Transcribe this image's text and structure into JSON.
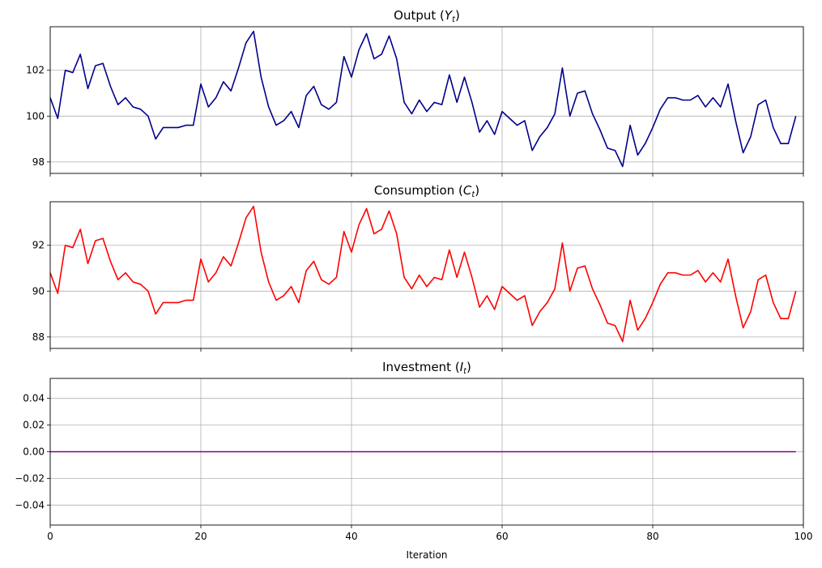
{
  "chart_data": [
    {
      "type": "line",
      "title": "Output (Y_t)",
      "title_base": "Output (",
      "title_var": "Y",
      "title_sub": "t",
      "title_end": ")",
      "color": "#00008b",
      "x_start": 0,
      "xlim": [
        0,
        100
      ],
      "ylim": [
        97.5,
        103.9
      ],
      "yticks": [
        98,
        100,
        102
      ],
      "ytick_labels": [
        "98",
        "100",
        "102"
      ],
      "grid": true,
      "values": [
        100.8,
        99.9,
        102.0,
        101.9,
        102.7,
        101.2,
        102.2,
        102.3,
        101.3,
        100.5,
        100.8,
        100.4,
        100.3,
        100.0,
        99.0,
        99.5,
        99.5,
        99.5,
        99.6,
        99.6,
        101.4,
        100.4,
        100.8,
        101.5,
        101.1,
        102.1,
        103.2,
        103.7,
        101.7,
        100.4,
        99.6,
        99.8,
        100.2,
        99.5,
        100.9,
        101.3,
        100.5,
        100.3,
        100.6,
        102.6,
        101.7,
        102.9,
        103.6,
        102.5,
        102.7,
        103.5,
        102.5,
        100.6,
        100.1,
        100.7,
        100.2,
        100.6,
        100.5,
        101.8,
        100.6,
        101.7,
        100.6,
        99.3,
        99.8,
        99.2,
        100.2,
        99.9,
        99.6,
        99.8,
        98.5,
        99.1,
        99.5,
        100.1,
        102.1,
        100.0,
        101.0,
        101.1,
        100.1,
        99.4,
        98.6,
        98.5,
        97.8,
        99.6,
        98.3,
        98.8,
        99.5,
        100.3,
        100.8,
        100.8,
        100.7,
        100.7,
        100.9,
        100.4,
        100.8,
        100.4,
        101.4,
        99.8,
        98.4,
        99.1,
        100.5,
        100.7,
        99.5,
        98.8,
        98.8,
        100.0
      ]
    },
    {
      "type": "line",
      "title": "Consumption (C_t)",
      "title_base": "Consumption (",
      "title_var": "C",
      "title_sub": "t",
      "title_end": ")",
      "color": "#ff0000",
      "x_start": 0,
      "xlim": [
        0,
        100
      ],
      "ylim": [
        87.5,
        93.9
      ],
      "yticks": [
        88,
        90,
        92
      ],
      "ytick_labels": [
        "88",
        "90",
        "92"
      ],
      "grid": true,
      "values": [
        90.8,
        89.9,
        92.0,
        91.9,
        92.7,
        91.2,
        92.2,
        92.3,
        91.3,
        90.5,
        90.8,
        90.4,
        90.3,
        90.0,
        89.0,
        89.5,
        89.5,
        89.5,
        89.6,
        89.6,
        91.4,
        90.4,
        90.8,
        91.5,
        91.1,
        92.1,
        93.2,
        93.7,
        91.7,
        90.4,
        89.6,
        89.8,
        90.2,
        89.5,
        90.9,
        91.3,
        90.5,
        90.3,
        90.6,
        92.6,
        91.7,
        92.9,
        93.6,
        92.5,
        92.7,
        93.5,
        92.5,
        90.6,
        90.1,
        90.7,
        90.2,
        90.6,
        90.5,
        91.8,
        90.6,
        91.7,
        90.6,
        89.3,
        89.8,
        89.2,
        90.2,
        89.9,
        89.6,
        89.8,
        88.5,
        89.1,
        89.5,
        90.1,
        92.1,
        90.0,
        91.0,
        91.1,
        90.1,
        89.4,
        88.6,
        88.5,
        87.8,
        89.6,
        88.3,
        88.8,
        89.5,
        90.3,
        90.8,
        90.8,
        90.7,
        90.7,
        90.9,
        90.4,
        90.8,
        90.4,
        91.4,
        89.8,
        88.4,
        89.1,
        90.5,
        90.7,
        89.5,
        88.8,
        88.8,
        90.0
      ]
    },
    {
      "type": "line",
      "title": "Investment (I_t)",
      "title_base": "Investment (",
      "title_var": "I",
      "title_sub": "t",
      "title_end": ")",
      "color": "#800080",
      "x_start": 0,
      "xlim": [
        0,
        100
      ],
      "ylim": [
        -0.055,
        0.055
      ],
      "yticks": [
        -0.04,
        -0.02,
        0.0,
        0.02,
        0.04
      ],
      "ytick_labels": [
        "−0.04",
        "−0.02",
        "0.00",
        "0.02",
        "0.04"
      ],
      "grid": true,
      "values": [
        0,
        0,
        0,
        0,
        0,
        0,
        0,
        0,
        0,
        0,
        0,
        0,
        0,
        0,
        0,
        0,
        0,
        0,
        0,
        0,
        0,
        0,
        0,
        0,
        0,
        0,
        0,
        0,
        0,
        0,
        0,
        0,
        0,
        0,
        0,
        0,
        0,
        0,
        0,
        0,
        0,
        0,
        0,
        0,
        0,
        0,
        0,
        0,
        0,
        0,
        0,
        0,
        0,
        0,
        0,
        0,
        0,
        0,
        0,
        0,
        0,
        0,
        0,
        0,
        0,
        0,
        0,
        0,
        0,
        0,
        0,
        0,
        0,
        0,
        0,
        0,
        0,
        0,
        0,
        0,
        0,
        0,
        0,
        0,
        0,
        0,
        0,
        0,
        0,
        0,
        0,
        0,
        0,
        0,
        0,
        0,
        0,
        0,
        0,
        0
      ]
    }
  ],
  "shared_x": {
    "xticks": [
      0,
      20,
      40,
      60,
      80,
      100
    ],
    "xtick_labels": [
      "0",
      "20",
      "40",
      "60",
      "80",
      "100"
    ],
    "xlabel": "Iteration"
  }
}
